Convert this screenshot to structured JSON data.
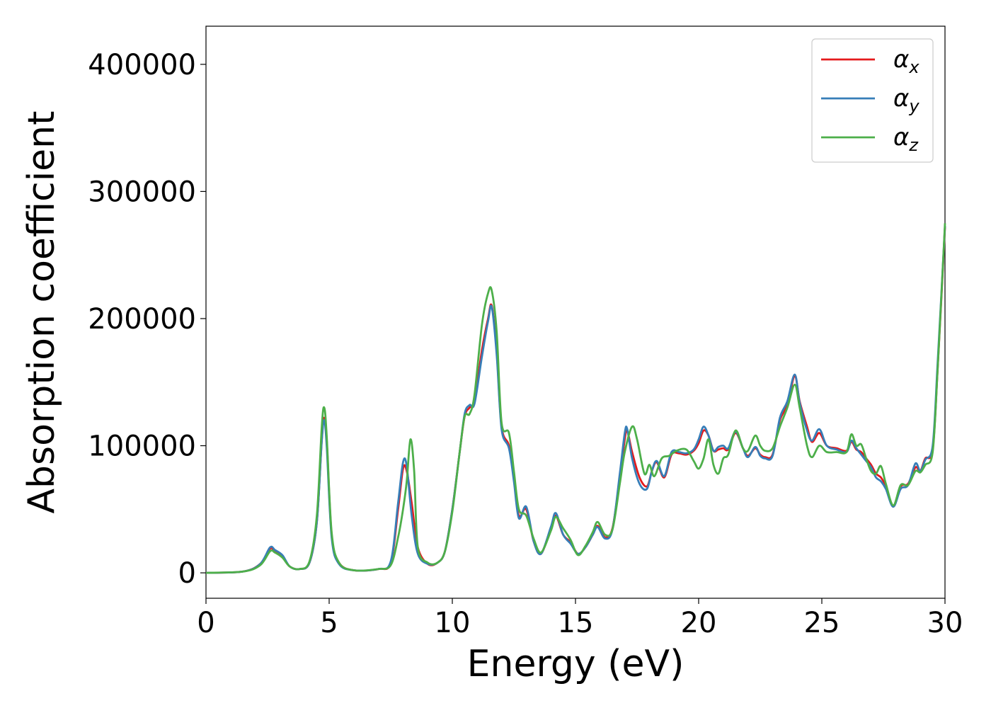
{
  "chart_data": {
    "type": "line",
    "title": "",
    "xlabel": "Energy (eV)",
    "ylabel": "Absorption coefficient",
    "xlim": [
      0,
      30
    ],
    "ylim": [
      -20000,
      430000
    ],
    "xticks": [
      0,
      5,
      10,
      15,
      20,
      25,
      30
    ],
    "yticks": [
      0,
      100000,
      200000,
      300000,
      400000
    ],
    "xtick_labels": [
      "0",
      "5",
      "10",
      "15",
      "20",
      "25",
      "30"
    ],
    "ytick_labels": [
      "0",
      "100000",
      "200000",
      "300000",
      "400000"
    ],
    "grid": false,
    "legend_position": "top-right",
    "series": [
      {
        "name": "α",
        "subscript": "x",
        "color": "#e41a1c",
        "x": [
          0,
          1.5,
          2.2,
          2.6,
          2.8,
          3.1,
          3.4,
          3.8,
          4.2,
          4.5,
          4.7,
          4.8,
          4.9,
          5.1,
          5.4,
          6,
          7,
          7.5,
          7.8,
          8.0,
          8.15,
          8.35,
          8.6,
          9.0,
          9.4,
          9.7,
          10.0,
          10.3,
          10.5,
          10.7,
          10.9,
          11.2,
          11.45,
          11.6,
          11.8,
          12.0,
          12.3,
          12.5,
          12.7,
          13.0,
          13.3,
          13.6,
          14.0,
          14.2,
          14.5,
          14.8,
          15.1,
          15.4,
          15.7,
          15.9,
          16.2,
          16.5,
          16.8,
          17.0,
          17.1,
          17.3,
          17.6,
          17.9,
          18.1,
          18.3,
          18.6,
          18.9,
          19.2,
          19.5,
          19.8,
          20.0,
          20.2,
          20.4,
          20.6,
          20.8,
          21.0,
          21.2,
          21.5,
          21.8,
          22.0,
          22.3,
          22.5,
          22.7,
          23.0,
          23.3,
          23.6,
          23.9,
          24.1,
          24.4,
          24.6,
          24.9,
          25.2,
          25.6,
          26.0,
          26.2,
          26.4,
          26.6,
          26.8,
          27.0,
          27.2,
          27.4,
          27.6,
          27.9,
          28.2,
          28.5,
          28.8,
          29.0,
          29.2,
          29.5,
          29.7,
          30.0
        ],
        "y": [
          0,
          1000,
          7000,
          19000,
          17000,
          13000,
          5000,
          3000,
          8000,
          40000,
          105000,
          122000,
          105000,
          30000,
          8000,
          2000,
          3000,
          8000,
          50000,
          82000,
          80000,
          55000,
          20000,
          7000,
          8000,
          17000,
          50000,
          95000,
          123000,
          130000,
          135000,
          175000,
          200000,
          210000,
          175000,
          115000,
          100000,
          75000,
          45000,
          50000,
          25000,
          15000,
          35000,
          45000,
          30000,
          24000,
          15000,
          20000,
          30000,
          37000,
          28000,
          35000,
          75000,
          105000,
          112000,
          95000,
          75000,
          68000,
          80000,
          87000,
          75000,
          93000,
          94000,
          93000,
          96000,
          102000,
          112000,
          108000,
          96000,
          97000,
          98000,
          97000,
          110000,
          98000,
          92000,
          98000,
          93000,
          91000,
          93000,
          120000,
          132000,
          155000,
          135000,
          115000,
          103000,
          110000,
          100000,
          98000,
          96000,
          103000,
          97000,
          95000,
          90000,
          85000,
          78000,
          75000,
          68000,
          52000,
          68000,
          70000,
          83000,
          80000,
          90000,
          97000,
          160000,
          272000
        ]
      },
      {
        "name": "α",
        "subscript": "y",
        "color": "#377eb8",
        "x": [
          0,
          1.5,
          2.2,
          2.6,
          2.8,
          3.1,
          3.4,
          3.8,
          4.2,
          4.5,
          4.7,
          4.8,
          4.9,
          5.1,
          5.4,
          6,
          7,
          7.5,
          7.8,
          8.0,
          8.15,
          8.35,
          8.6,
          9.0,
          9.4,
          9.7,
          10.0,
          10.3,
          10.5,
          10.7,
          10.9,
          11.2,
          11.45,
          11.6,
          11.8,
          12.0,
          12.3,
          12.5,
          12.7,
          13.0,
          13.3,
          13.6,
          14.0,
          14.2,
          14.5,
          14.8,
          15.1,
          15.4,
          15.7,
          15.9,
          16.2,
          16.5,
          16.8,
          17.0,
          17.1,
          17.3,
          17.6,
          17.9,
          18.1,
          18.3,
          18.6,
          18.9,
          19.2,
          19.5,
          19.8,
          20.0,
          20.2,
          20.4,
          20.6,
          20.8,
          21.0,
          21.2,
          21.5,
          21.8,
          22.0,
          22.3,
          22.5,
          22.7,
          23.0,
          23.3,
          23.6,
          23.9,
          24.1,
          24.4,
          24.6,
          24.9,
          25.2,
          25.6,
          26.0,
          26.2,
          26.4,
          26.6,
          26.8,
          27.0,
          27.2,
          27.4,
          27.6,
          27.9,
          28.2,
          28.5,
          28.8,
          29.0,
          29.2,
          29.5,
          29.7,
          30.0
        ],
        "y": [
          0,
          1000,
          7000,
          20000,
          18000,
          14000,
          5000,
          3000,
          8000,
          40000,
          104000,
          120000,
          100000,
          28000,
          7000,
          2000,
          3000,
          9000,
          55000,
          87000,
          84000,
          45000,
          15000,
          7000,
          8000,
          17000,
          50000,
          95000,
          125000,
          132000,
          133000,
          170000,
          198000,
          209000,
          172000,
          113000,
          98000,
          72000,
          43000,
          52000,
          25000,
          15000,
          36000,
          47000,
          30000,
          23000,
          15000,
          20000,
          30000,
          36000,
          27000,
          34000,
          78000,
          110000,
          113000,
          90000,
          70000,
          66000,
          80000,
          88000,
          76000,
          95000,
          95000,
          94000,
          97000,
          105000,
          115000,
          108000,
          96000,
          99000,
          100000,
          98000,
          111000,
          98000,
          91000,
          99000,
          92000,
          90000,
          92000,
          122000,
          135000,
          156000,
          134000,
          112000,
          104000,
          113000,
          100000,
          97000,
          95000,
          104000,
          98000,
          93000,
          88000,
          83000,
          75000,
          72000,
          66000,
          52000,
          66000,
          69000,
          86000,
          80000,
          89000,
          100000,
          165000,
          273000
        ]
      },
      {
        "name": "α",
        "subscript": "z",
        "color": "#4daf4a",
        "x": [
          0,
          1.5,
          2.2,
          2.6,
          2.8,
          3.1,
          3.4,
          3.8,
          4.2,
          4.5,
          4.7,
          4.8,
          4.9,
          5.1,
          5.4,
          6,
          7,
          7.5,
          7.8,
          8.0,
          8.15,
          8.3,
          8.45,
          8.6,
          9.0,
          9.4,
          9.7,
          10.0,
          10.3,
          10.5,
          10.7,
          10.9,
          11.2,
          11.45,
          11.6,
          11.8,
          12.0,
          12.3,
          12.5,
          12.7,
          13.0,
          13.3,
          13.6,
          14.0,
          14.2,
          14.5,
          14.8,
          15.1,
          15.4,
          15.7,
          15.9,
          16.2,
          16.5,
          16.8,
          17.0,
          17.3,
          17.5,
          17.8,
          18.0,
          18.2,
          18.5,
          18.8,
          19.1,
          19.5,
          19.8,
          20.0,
          20.2,
          20.4,
          20.6,
          20.8,
          21.0,
          21.2,
          21.5,
          21.8,
          22.0,
          22.3,
          22.5,
          22.7,
          23.0,
          23.3,
          23.6,
          23.9,
          24.1,
          24.4,
          24.6,
          24.9,
          25.2,
          25.6,
          26.0,
          26.2,
          26.4,
          26.6,
          26.8,
          27.0,
          27.2,
          27.4,
          27.6,
          27.9,
          28.2,
          28.5,
          28.8,
          29.0,
          29.2,
          29.5,
          29.7,
          30.0
        ],
        "y": [
          0,
          1000,
          6000,
          17000,
          16000,
          12000,
          5000,
          3000,
          9000,
          45000,
          115000,
          130000,
          108000,
          32000,
          8000,
          2000,
          3000,
          6000,
          28000,
          50000,
          72000,
          105000,
          80000,
          20000,
          8000,
          8000,
          17000,
          48000,
          95000,
          123000,
          125000,
          140000,
          195000,
          220000,
          222000,
          190000,
          118000,
          110000,
          80000,
          50000,
          45000,
          27000,
          16000,
          33000,
          44000,
          35000,
          26000,
          14000,
          21000,
          32000,
          40000,
          30000,
          34000,
          70000,
          95000,
          115000,
          105000,
          78000,
          85000,
          76000,
          90000,
          92000,
          96000,
          97000,
          88000,
          82000,
          90000,
          105000,
          85000,
          78000,
          90000,
          93000,
          112000,
          98000,
          96000,
          108000,
          100000,
          96000,
          98000,
          115000,
          130000,
          148000,
          130000,
          100000,
          91000,
          100000,
          95000,
          95000,
          95000,
          109000,
          100000,
          101000,
          90000,
          80000,
          78000,
          84000,
          70000,
          53000,
          69000,
          69000,
          80000,
          79000,
          85000,
          95000,
          160000,
          275000
        ]
      }
    ]
  }
}
